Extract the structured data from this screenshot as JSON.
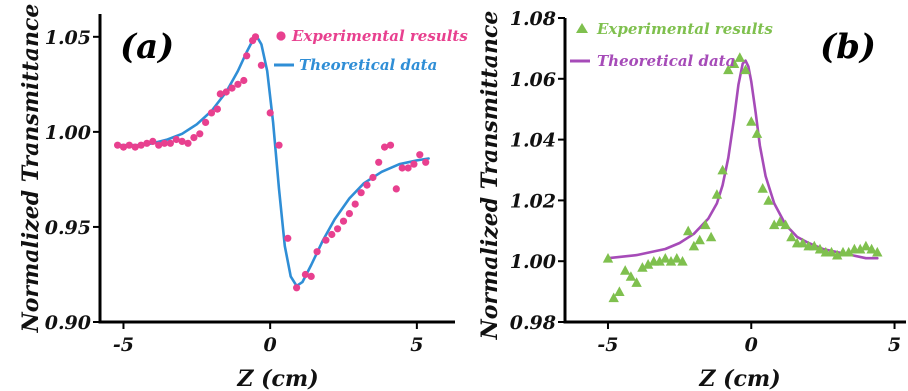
{
  "chart_data": [
    {
      "type": "scatter",
      "panel_label": "(a)",
      "xlabel": "Z (cm)",
      "ylabel": "Normalized Transmittance",
      "xlim": [
        -5.8,
        6.3
      ],
      "ylim": [
        0.9,
        1.062
      ],
      "x_ticks": [
        -5,
        0,
        5
      ],
      "x_tick_labels": [
        "-5",
        "0",
        "5"
      ],
      "y_ticks": [
        0.9,
        0.95,
        1.0,
        1.05
      ],
      "y_tick_labels": [
        "0.90",
        "0.95",
        "1.00",
        "1.05"
      ],
      "legend_placement": "top-right",
      "series": [
        {
          "name": "Experimental results",
          "kind": "markers",
          "marker": "circle",
          "color": "#e8408f",
          "points": [
            [
              -5.2,
              0.993
            ],
            [
              -5.0,
              0.992
            ],
            [
              -4.8,
              0.993
            ],
            [
              -4.6,
              0.992
            ],
            [
              -4.4,
              0.993
            ],
            [
              -4.2,
              0.994
            ],
            [
              -4.0,
              0.995
            ],
            [
              -3.8,
              0.993
            ],
            [
              -3.6,
              0.994
            ],
            [
              -3.4,
              0.994
            ],
            [
              -3.2,
              0.996
            ],
            [
              -3.0,
              0.995
            ],
            [
              -2.8,
              0.994
            ],
            [
              -2.6,
              0.997
            ],
            [
              -2.4,
              0.999
            ],
            [
              -2.2,
              1.005
            ],
            [
              -2.0,
              1.01
            ],
            [
              -1.8,
              1.012
            ],
            [
              -1.7,
              1.02
            ],
            [
              -1.5,
              1.021
            ],
            [
              -1.3,
              1.023
            ],
            [
              -1.1,
              1.025
            ],
            [
              -0.9,
              1.027
            ],
            [
              -0.8,
              1.04
            ],
            [
              -0.6,
              1.048
            ],
            [
              -0.5,
              1.05
            ],
            [
              -0.3,
              1.035
            ],
            [
              0.0,
              1.01
            ],
            [
              0.3,
              0.993
            ],
            [
              0.6,
              0.944
            ],
            [
              0.9,
              0.918
            ],
            [
              1.2,
              0.925
            ],
            [
              1.4,
              0.924
            ],
            [
              1.6,
              0.937
            ],
            [
              1.9,
              0.943
            ],
            [
              2.1,
              0.946
            ],
            [
              2.3,
              0.949
            ],
            [
              2.5,
              0.953
            ],
            [
              2.7,
              0.957
            ],
            [
              2.9,
              0.962
            ],
            [
              3.1,
              0.968
            ],
            [
              3.3,
              0.972
            ],
            [
              3.5,
              0.976
            ],
            [
              3.7,
              0.984
            ],
            [
              3.9,
              0.992
            ],
            [
              4.1,
              0.993
            ],
            [
              4.3,
              0.97
            ],
            [
              4.5,
              0.981
            ],
            [
              4.7,
              0.981
            ],
            [
              4.9,
              0.983
            ],
            [
              5.1,
              0.988
            ],
            [
              5.3,
              0.984
            ]
          ]
        },
        {
          "name": "Theoretical data",
          "kind": "line",
          "color": "#2f8ed6",
          "points": [
            [
              -5.2,
              0.993
            ],
            [
              -4.5,
              0.993
            ],
            [
              -4.0,
              0.994
            ],
            [
              -3.5,
              0.996
            ],
            [
              -3.0,
              0.999
            ],
            [
              -2.5,
              1.004
            ],
            [
              -2.0,
              1.011
            ],
            [
              -1.5,
              1.021
            ],
            [
              -1.1,
              1.032
            ],
            [
              -0.8,
              1.042
            ],
            [
              -0.6,
              1.048
            ],
            [
              -0.45,
              1.05
            ],
            [
              -0.3,
              1.046
            ],
            [
              -0.1,
              1.032
            ],
            [
              0.1,
              1.005
            ],
            [
              0.3,
              0.97
            ],
            [
              0.5,
              0.94
            ],
            [
              0.7,
              0.924
            ],
            [
              0.9,
              0.919
            ],
            [
              1.1,
              0.921
            ],
            [
              1.4,
              0.93
            ],
            [
              1.8,
              0.943
            ],
            [
              2.2,
              0.954
            ],
            [
              2.7,
              0.965
            ],
            [
              3.2,
              0.973
            ],
            [
              3.8,
              0.979
            ],
            [
              4.4,
              0.983
            ],
            [
              5.0,
              0.985
            ],
            [
              5.4,
              0.986
            ]
          ]
        }
      ]
    },
    {
      "type": "scatter",
      "panel_label": "(b)",
      "xlabel": "Z (cm)",
      "ylabel": "Normalized Transmittance",
      "xlim": [
        -6.5,
        5.4
      ],
      "ylim": [
        0.98,
        1.08
      ],
      "x_ticks": [
        -5,
        0,
        5
      ],
      "x_tick_labels": [
        "-5",
        "0",
        "5"
      ],
      "y_ticks": [
        0.98,
        1.0,
        1.02,
        1.04,
        1.06,
        1.08
      ],
      "y_tick_labels": [
        "0.98",
        "1.00",
        "1.02",
        "1.04",
        "1.06",
        "1.08"
      ],
      "legend_placement": "top-left",
      "series": [
        {
          "name": "Experimental results",
          "kind": "markers",
          "marker": "triangle",
          "color": "#7fc04e",
          "points": [
            [
              -5.0,
              1.001
            ],
            [
              -4.8,
              0.988
            ],
            [
              -4.6,
              0.99
            ],
            [
              -4.4,
              0.997
            ],
            [
              -4.2,
              0.995
            ],
            [
              -4.0,
              0.993
            ],
            [
              -3.8,
              0.998
            ],
            [
              -3.6,
              0.999
            ],
            [
              -3.4,
              1.0
            ],
            [
              -3.2,
              1.0
            ],
            [
              -3.0,
              1.001
            ],
            [
              -2.8,
              1.0
            ],
            [
              -2.6,
              1.001
            ],
            [
              -2.4,
              1.0
            ],
            [
              -2.2,
              1.01
            ],
            [
              -2.0,
              1.005
            ],
            [
              -1.8,
              1.007
            ],
            [
              -1.6,
              1.012
            ],
            [
              -1.4,
              1.008
            ],
            [
              -1.2,
              1.022
            ],
            [
              -1.0,
              1.03
            ],
            [
              -0.8,
              1.063
            ],
            [
              -0.6,
              1.065
            ],
            [
              -0.4,
              1.067
            ],
            [
              -0.2,
              1.063
            ],
            [
              0.0,
              1.046
            ],
            [
              0.2,
              1.042
            ],
            [
              0.4,
              1.024
            ],
            [
              0.6,
              1.02
            ],
            [
              0.8,
              1.012
            ],
            [
              1.0,
              1.013
            ],
            [
              1.2,
              1.012
            ],
            [
              1.4,
              1.008
            ],
            [
              1.6,
              1.006
            ],
            [
              1.8,
              1.006
            ],
            [
              2.0,
              1.005
            ],
            [
              2.2,
              1.005
            ],
            [
              2.4,
              1.004
            ],
            [
              2.6,
              1.003
            ],
            [
              2.8,
              1.003
            ],
            [
              3.0,
              1.002
            ],
            [
              3.2,
              1.003
            ],
            [
              3.4,
              1.003
            ],
            [
              3.6,
              1.004
            ],
            [
              3.8,
              1.004
            ],
            [
              4.0,
              1.005
            ],
            [
              4.2,
              1.004
            ],
            [
              4.4,
              1.003
            ]
          ]
        },
        {
          "name": "Theoretical data",
          "kind": "line",
          "color": "#a64bb8",
          "points": [
            [
              -5.0,
              1.001
            ],
            [
              -4.0,
              1.002
            ],
            [
              -3.0,
              1.004
            ],
            [
              -2.5,
              1.006
            ],
            [
              -2.0,
              1.009
            ],
            [
              -1.5,
              1.014
            ],
            [
              -1.2,
              1.019
            ],
            [
              -1.0,
              1.025
            ],
            [
              -0.8,
              1.034
            ],
            [
              -0.6,
              1.047
            ],
            [
              -0.45,
              1.058
            ],
            [
              -0.3,
              1.065
            ],
            [
              -0.2,
              1.066
            ],
            [
              -0.1,
              1.064
            ],
            [
              0.0,
              1.059
            ],
            [
              0.15,
              1.049
            ],
            [
              0.3,
              1.038
            ],
            [
              0.5,
              1.028
            ],
            [
              0.8,
              1.019
            ],
            [
              1.2,
              1.012
            ],
            [
              1.6,
              1.008
            ],
            [
              2.0,
              1.006
            ],
            [
              2.5,
              1.004
            ],
            [
              3.0,
              1.003
            ],
            [
              3.5,
              1.002
            ],
            [
              4.0,
              1.001
            ],
            [
              4.4,
              1.001
            ]
          ]
        }
      ]
    }
  ],
  "palette": {
    "axis": "#000000",
    "panel_a_marker": "#e8408f",
    "panel_a_line": "#2f8ed6",
    "panel_b_marker": "#7fc04e",
    "panel_b_line": "#a64bb8"
  }
}
